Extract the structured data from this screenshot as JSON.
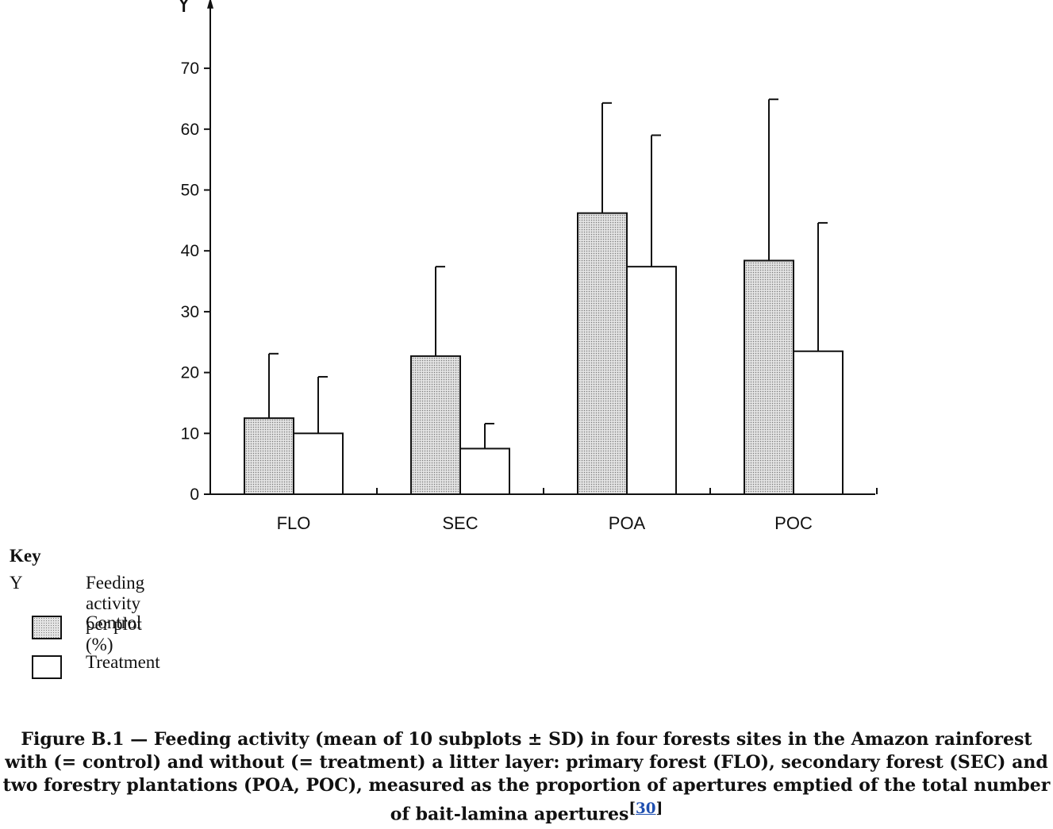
{
  "chart_data": {
    "type": "bar",
    "y_axis_letter": "Y",
    "categories": [
      "FLO",
      "SEC",
      "POA",
      "POC"
    ],
    "series": [
      {
        "name": "Control",
        "values": [
          12.5,
          22.7,
          46.2,
          38.4
        ],
        "sd_upper": [
          23.1,
          37.4,
          64.3,
          64.9
        ],
        "fill": "dotted"
      },
      {
        "name": "Treatment",
        "values": [
          10.0,
          7.5,
          37.4,
          23.5
        ],
        "sd_upper": [
          19.3,
          11.6,
          59.0,
          44.6
        ],
        "fill": "white"
      }
    ],
    "yticks": [
      0,
      10,
      20,
      30,
      40,
      50,
      60,
      70
    ],
    "ylim": [
      0,
      78
    ],
    "grid": false
  },
  "key": {
    "title": "Key",
    "entries": [
      {
        "symbol": "Y",
        "label": "Feeding activity per plot (%)"
      },
      {
        "symbol": "control-swatch",
        "label": "Control"
      },
      {
        "symbol": "treatment-swatch",
        "label": "Treatment"
      }
    ]
  },
  "caption": {
    "text": "Figure B.1 — Feeding activity (mean of 10 subplots ± SD) in four forests sites in the Amazon rainforest with (= control) and without (= treatment) a litter layer: primary forest (FLO), secondary forest (SEC) and two forestry plantations (POA, POC), measured as the proportion of apertures emptied of the total number of bait-lamina apertures",
    "reference": "30"
  },
  "colors": {
    "ink": "#111111",
    "control_fill": "#e4e4e4",
    "dots": "#7a7a7a",
    "link": "#1f4fb0"
  }
}
